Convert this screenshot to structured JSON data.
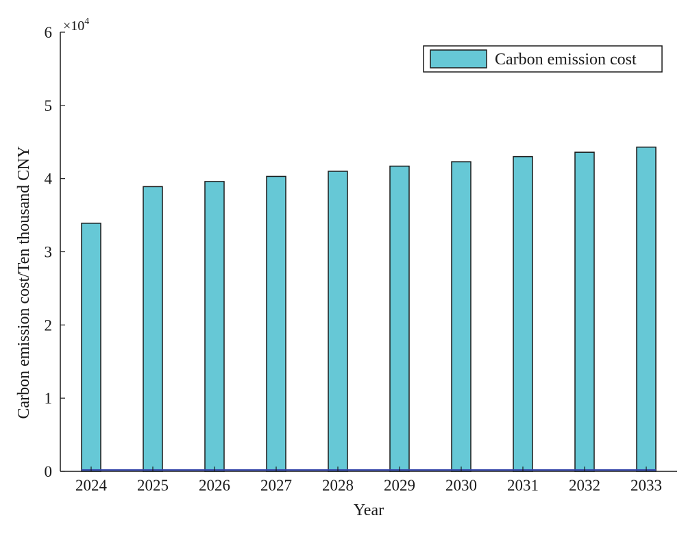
{
  "chart_data": {
    "type": "bar",
    "categories": [
      "2024",
      "2025",
      "2026",
      "2027",
      "2028",
      "2029",
      "2030",
      "2031",
      "2032",
      "2033"
    ],
    "series": [
      {
        "name": "Carbon emission cost",
        "values": [
          33900,
          38900,
          39600,
          40300,
          41000,
          41700,
          42300,
          43000,
          43600,
          44300
        ],
        "color": "#66c8d6"
      }
    ],
    "baseline_color": "#3344aa",
    "xlabel": "Year",
    "ylabel": "Carbon emission cost/Ten thousand CNY",
    "ylim": [
      0,
      60000
    ],
    "yticks": [
      0,
      10000,
      20000,
      30000,
      40000,
      50000,
      60000
    ],
    "ytick_labels": [
      "0",
      "1",
      "2",
      "3",
      "4",
      "5",
      "6"
    ],
    "y_multiplier_base": "×10",
    "y_multiplier_exp": "4",
    "legend": {
      "placement": "top-right",
      "entries": [
        "Carbon emission cost"
      ]
    },
    "grid": false
  }
}
